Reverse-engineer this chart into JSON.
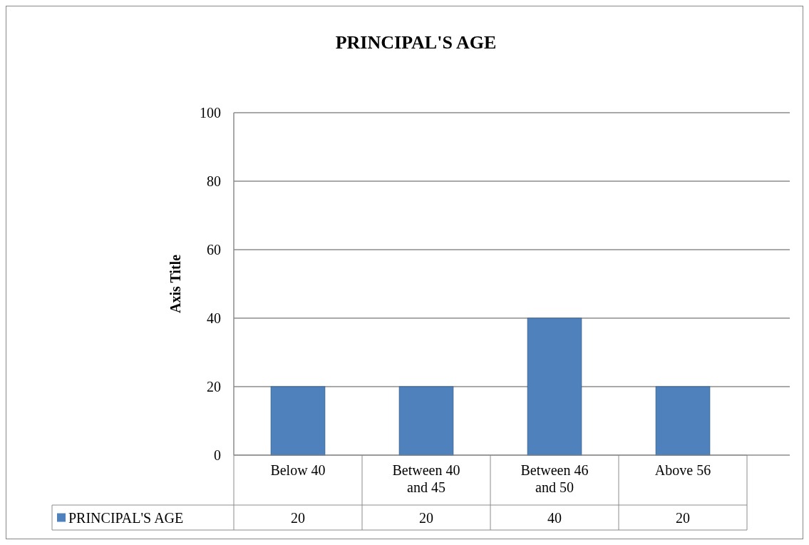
{
  "chart_data": {
    "type": "bar",
    "title": "PRINCIPAL'S AGE",
    "ylabel": "Axis Title",
    "categories": [
      "Below 40",
      "Between 40 and 45",
      "Between 46 and 50",
      "Above 56"
    ],
    "series": [
      {
        "name": "PRINCIPAL'S AGE",
        "color": "#4f81bd",
        "values": [
          20,
          20,
          40,
          20
        ]
      }
    ],
    "ylim": [
      0,
      100
    ],
    "yticks": [
      0,
      20,
      40,
      60,
      80,
      100
    ],
    "grid": true,
    "data_labels": true
  }
}
